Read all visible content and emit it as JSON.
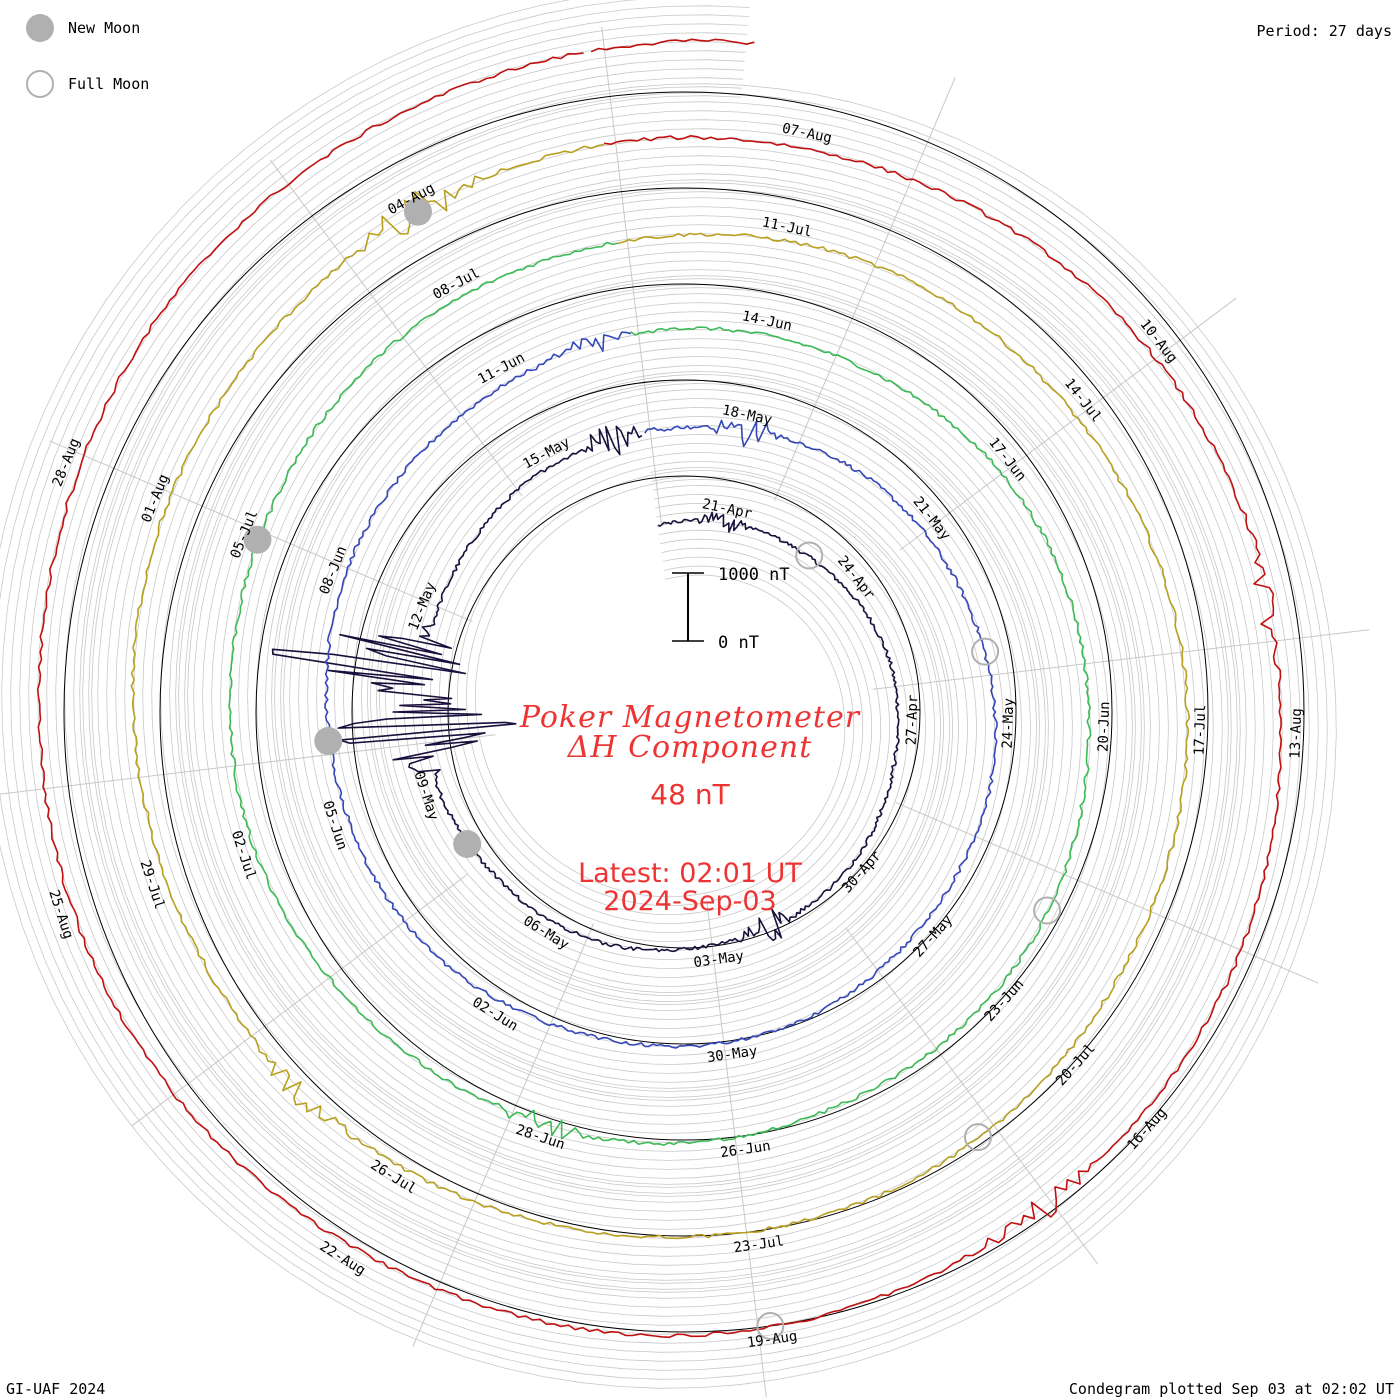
{
  "legend": {
    "new_moon_label": "New Moon",
    "full_moon_label": "Full Moon"
  },
  "period_label": "Period: 27 days",
  "footer_left": "GI-UAF 2024",
  "footer_right": "Condegram plotted Sep 03 at 02:02 UT",
  "title": {
    "line1": "Poker Magnetometer",
    "line2": "ΔH Component",
    "value": "48 nT",
    "latest": "Latest: 02:01 UT",
    "date": "2024-Sep-03"
  },
  "scale_bar": {
    "top_label": "1000 nT",
    "bottom_label": "0 nT"
  },
  "colors": {
    "title_red": "#ee3333",
    "grid": "#c8c8c8",
    "moon_marker": "#b0b0b0",
    "rings": [
      "#1a0f3c",
      "#2d1f9e",
      "#3347b8",
      "#2aa5a8",
      "#3cba55",
      "#9bc034",
      "#b8a020",
      "#c8500a",
      "#c01010"
    ]
  },
  "chart_data": {
    "type": "condegram",
    "period_days": 27,
    "start_date": "2024-04-20",
    "end_date": "2024-09-03",
    "units": "nT",
    "angular_spokes": 12,
    "date_labels": [
      {
        "label": "21-Apr",
        "turn": 0
      },
      {
        "label": "24-Apr",
        "turn": 0
      },
      {
        "label": "27-Apr",
        "turn": 0
      },
      {
        "label": "30-Apr",
        "turn": 0
      },
      {
        "label": "03-May",
        "turn": 0
      },
      {
        "label": "06-May",
        "turn": 0
      },
      {
        "label": "09-May",
        "turn": 0
      },
      {
        "label": "12-May",
        "turn": 0
      },
      {
        "label": "15-May",
        "turn": 0
      },
      {
        "label": "18-May",
        "turn": 1
      },
      {
        "label": "21-May",
        "turn": 1
      },
      {
        "label": "24-May",
        "turn": 1
      },
      {
        "label": "27-May",
        "turn": 1
      },
      {
        "label": "30-May",
        "turn": 1
      },
      {
        "label": "02-Jun",
        "turn": 1
      },
      {
        "label": "05-Jun",
        "turn": 1
      },
      {
        "label": "08-Jun",
        "turn": 1
      },
      {
        "label": "11-Jun",
        "turn": 1
      },
      {
        "label": "14-Jun",
        "turn": 2
      },
      {
        "label": "17-Jun",
        "turn": 2
      },
      {
        "label": "20-Jun",
        "turn": 2
      },
      {
        "label": "23-Jun",
        "turn": 2
      },
      {
        "label": "26-Jun",
        "turn": 2
      },
      {
        "label": "28-Jun",
        "turn": 2
      },
      {
        "label": "02-Jul",
        "turn": 2
      },
      {
        "label": "05-Jul",
        "turn": 2
      },
      {
        "label": "08-Jul",
        "turn": 2
      },
      {
        "label": "11-Jul",
        "turn": 3
      },
      {
        "label": "14-Jul",
        "turn": 3
      },
      {
        "label": "17-Jul",
        "turn": 3
      },
      {
        "label": "20-Jul",
        "turn": 3
      },
      {
        "label": "23-Jul",
        "turn": 3
      },
      {
        "label": "26-Jul",
        "turn": 3
      },
      {
        "label": "29-Jul",
        "turn": 3
      },
      {
        "label": "01-Aug",
        "turn": 3
      },
      {
        "label": "04-Aug",
        "turn": 3
      },
      {
        "label": "07-Aug",
        "turn": 4
      },
      {
        "label": "10-Aug",
        "turn": 4
      },
      {
        "label": "13-Aug",
        "turn": 4
      },
      {
        "label": "16-Aug",
        "turn": 4
      },
      {
        "label": "19-Aug",
        "turn": 4
      },
      {
        "label": "22-Aug",
        "turn": 4
      },
      {
        "label": "25-Aug",
        "turn": 4
      },
      {
        "label": "28-Aug",
        "turn": 4
      }
    ],
    "new_moon_dates": [
      "2024-05-08",
      "2024-06-06",
      "2024-07-05",
      "2024-08-04"
    ],
    "full_moon_dates": [
      "2024-04-23",
      "2024-05-23",
      "2024-06-22",
      "2024-07-21",
      "2024-08-19"
    ],
    "disturbances": [
      {
        "date": "2024-04-21",
        "amplitude": 260
      },
      {
        "date": "2024-05-02",
        "amplitude": 280
      },
      {
        "date": "2024-05-10",
        "amplitude": 1800
      },
      {
        "date": "2024-05-11",
        "amplitude": 2400
      },
      {
        "date": "2024-05-16",
        "amplitude": 300
      },
      {
        "date": "2024-05-18",
        "amplitude": 250
      },
      {
        "date": "2024-06-12",
        "amplitude": 180
      },
      {
        "date": "2024-06-28",
        "amplitude": 200
      },
      {
        "date": "2024-07-27",
        "amplitude": 220
      },
      {
        "date": "2024-08-04",
        "amplitude": 300
      },
      {
        "date": "2024-08-12",
        "amplitude": 260
      },
      {
        "date": "2024-08-17",
        "amplitude": 240
      }
    ]
  }
}
